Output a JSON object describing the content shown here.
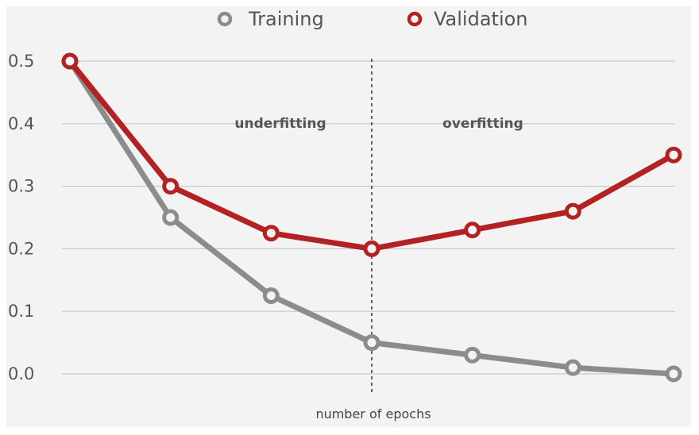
{
  "chart_data": {
    "type": "line",
    "title": "",
    "xlabel": "number of epochs",
    "ylabel": "",
    "ylim": [
      0.0,
      0.5
    ],
    "yticks": [
      "0.0",
      "0.1",
      "0.2",
      "0.3",
      "0.4",
      "0.5"
    ],
    "grid": true,
    "legend_position": "top-center",
    "x": [
      1,
      2,
      3,
      4,
      5,
      6,
      7
    ],
    "series": [
      {
        "name": "Training",
        "color": "#8c8c8c",
        "values": [
          0.5,
          0.25,
          0.125,
          0.05,
          0.03,
          0.01,
          0.0
        ]
      },
      {
        "name": "Validation",
        "color": "#b22222",
        "values": [
          0.5,
          0.3,
          0.225,
          0.2,
          0.23,
          0.26,
          0.35
        ]
      }
    ],
    "annotations": [
      "underfitting",
      "overfitting"
    ],
    "divider_at_x": 4
  }
}
